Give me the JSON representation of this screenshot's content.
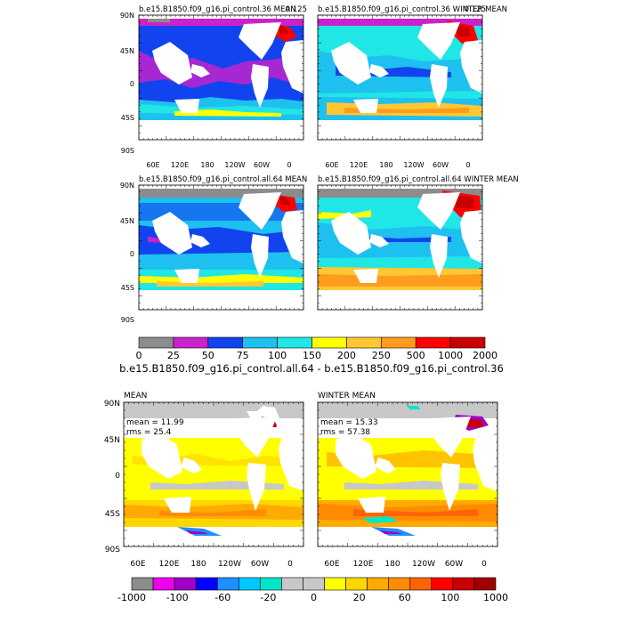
{
  "panels": [
    {
      "title": "b.e15.B1850.f09_g16.pi_control.36 MEAN",
      "corner": "0.125",
      "kind": "top"
    },
    {
      "title": "b.e15.B1850.f09_g16.pi_control.36 WINTER MEAN",
      "corner": "0.125",
      "kind": "top"
    },
    {
      "title": "b.e15.B1850.f09_g16.pi_control.all.64 MEAN",
      "corner": "",
      "kind": "top"
    },
    {
      "title": "b.e15.B1850.f09_g16.pi_control.all.64 WINTER MEAN",
      "corner": "",
      "kind": "top"
    },
    {
      "title": "MEAN",
      "corner": "",
      "kind": "diff",
      "mean": "mean = 11.99",
      "rms": "rms = 25.4"
    },
    {
      "title": "WINTER MEAN",
      "corner": "",
      "kind": "diff",
      "mean": "mean = 15.33",
      "rms": "rms = 57.38"
    }
  ],
  "lat_labels": [
    "90N",
    "45N",
    "0",
    "45S",
    "90S"
  ],
  "lon_labels": [
    "60E",
    "120E",
    "180",
    "120W",
    "60W",
    "0"
  ],
  "colorbar_top": {
    "colors": [
      "#8c8c8c",
      "#cc22cc",
      "#1144ee",
      "#1ec0f0",
      "#20e6e6",
      "#ffff00",
      "#ffc832",
      "#ff9c1e",
      "#ff0000",
      "#c80000"
    ],
    "labels": [
      "0",
      "25",
      "50",
      "75",
      "100",
      "150",
      "200",
      "250",
      "500",
      "1000",
      "2000"
    ]
  },
  "diff_title": "b.e15.B1850.f09_g16.pi_control.all.64 - b.e15.B1850.f09_g16.pi_control.36",
  "colorbar_bottom": {
    "colors": [
      "#8c8c8c",
      "#ee00ee",
      "#a000c8",
      "#0000ff",
      "#1e90ff",
      "#00c8ff",
      "#00e6c8",
      "#c8c8c8",
      "#c8c8c8",
      "#ffff00",
      "#ffd700",
      "#ffaa00",
      "#ff8c00",
      "#ff6400",
      "#ff0000",
      "#c80000",
      "#a00000"
    ],
    "labels": [
      "-1000",
      "-100",
      "-60",
      "-20",
      "0",
      "20",
      "60",
      "100",
      "1000"
    ]
  },
  "colors": {
    "land": "#ffffff",
    "ice": "#8c8c8c",
    "diff_land_gray": "#c8c8c8"
  }
}
